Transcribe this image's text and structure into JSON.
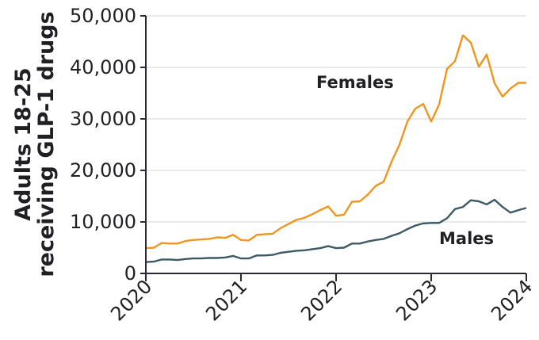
{
  "chart_data": {
    "type": "line",
    "title": "",
    "xlabel": "",
    "ylabel": "Adults 18-25 receiving GLP-1 drugs",
    "ylabel_lines": [
      "Adults 18-25",
      "receiving GLP-1 drugs"
    ],
    "ylim": [
      0,
      50000
    ],
    "xlim": [
      "2020-01",
      "2024-01"
    ],
    "grid": {
      "horizontal": true,
      "vertical": false
    },
    "legend": "inline labels",
    "y_ticks": [
      {
        "value": 0,
        "label": "0"
      },
      {
        "value": 10000,
        "label": "10,000"
      },
      {
        "value": 20000,
        "label": "20,000"
      },
      {
        "value": 30000,
        "label": "30,000"
      },
      {
        "value": 40000,
        "label": "40,000"
      },
      {
        "value": 50000,
        "label": "50,000"
      }
    ],
    "x_ticks": [
      {
        "value": 0,
        "label": "2020"
      },
      {
        "value": 12,
        "label": "2021"
      },
      {
        "value": 24,
        "label": "2022"
      },
      {
        "value": 36,
        "label": "2023"
      },
      {
        "value": 48,
        "label": "2024"
      }
    ],
    "x_unit": "months since Jan 2020",
    "series": [
      {
        "name": "Females",
        "color": "#f0961e",
        "label_pos": {
          "month": 21.5,
          "value": 36000
        },
        "x": [
          0,
          1,
          2,
          3,
          4,
          5,
          6,
          7,
          8,
          9,
          10,
          11,
          12,
          13,
          14,
          15,
          16,
          17,
          18,
          19,
          20,
          21,
          22,
          23,
          24,
          25,
          26,
          27,
          28,
          29,
          30,
          31,
          32,
          33,
          34,
          35,
          36,
          37,
          38,
          39,
          40,
          41,
          42,
          43,
          44,
          45,
          46,
          47,
          48
        ],
        "values": [
          4900,
          5000,
          5900,
          5800,
          5800,
          6300,
          6500,
          6600,
          6700,
          7000,
          6900,
          7500,
          6500,
          6400,
          7500,
          7600,
          7700,
          8800,
          9600,
          10400,
          10800,
          11500,
          12300,
          13000,
          11200,
          11400,
          13900,
          14000,
          15300,
          17000,
          17800,
          21700,
          25000,
          29500,
          32000,
          32900,
          29500,
          32800,
          39700,
          41200,
          46200,
          44800,
          40100,
          42500,
          36900,
          34300,
          35900,
          37000,
          37000
        ]
      },
      {
        "name": "Males",
        "color": "#3b5a66",
        "label_pos": {
          "month": 37,
          "value": 5700
        },
        "x": [
          0,
          1,
          2,
          3,
          4,
          5,
          6,
          7,
          8,
          9,
          10,
          11,
          12,
          13,
          14,
          15,
          16,
          17,
          18,
          19,
          20,
          21,
          22,
          23,
          24,
          25,
          26,
          27,
          28,
          29,
          30,
          31,
          32,
          33,
          34,
          35,
          36,
          37,
          38,
          39,
          40,
          41,
          42,
          43,
          44,
          45,
          46,
          47,
          48
        ],
        "values": [
          2200,
          2300,
          2700,
          2700,
          2600,
          2800,
          2900,
          2900,
          3000,
          3000,
          3100,
          3400,
          2900,
          2900,
          3500,
          3500,
          3600,
          4000,
          4200,
          4400,
          4500,
          4700,
          4900,
          5300,
          4900,
          5000,
          5800,
          5800,
          6200,
          6500,
          6700,
          7300,
          7800,
          8600,
          9300,
          9700,
          9800,
          9800,
          10700,
          12500,
          12900,
          14200,
          14000,
          13400,
          14300,
          12900,
          11800,
          12300,
          12700
        ]
      }
    ]
  },
  "colors": {
    "females": "#f0961e",
    "males": "#3b5a66",
    "axis": "#2a2a35",
    "grid": "#e3e3e3",
    "text": "#1f1f24"
  }
}
